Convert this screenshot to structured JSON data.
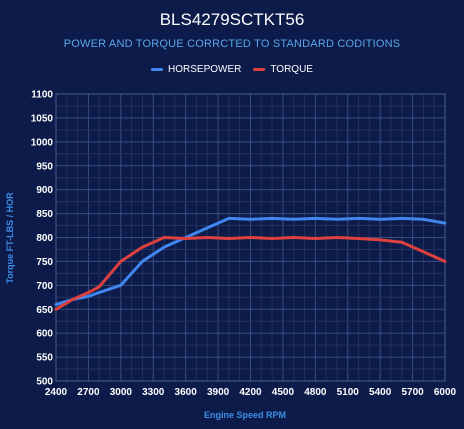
{
  "chart_data": {
    "type": "line",
    "title": "BLS4279SCTKT56",
    "subtitle": "POWER AND TORQUE CORRCTED TO STANDARD CODITIONS",
    "xlabel": "Engine Speed RPM",
    "ylabel": "Torque FT-LBS / HOR",
    "x": [
      2400,
      2550,
      2700,
      2800,
      3000,
      3200,
      3400,
      3600,
      3800,
      4000,
      4200,
      4400,
      4600,
      4800,
      5000,
      5200,
      5400,
      5600,
      5800,
      6000
    ],
    "x_ticks": [
      2400,
      2700,
      3000,
      3300,
      3600,
      3900,
      4200,
      4500,
      4800,
      5100,
      5400,
      5700,
      6000
    ],
    "y_ticks": [
      500,
      550,
      600,
      650,
      700,
      750,
      800,
      850,
      900,
      950,
      1000,
      1050,
      1100
    ],
    "xlim": [
      2400,
      6000
    ],
    "ylim": [
      500,
      1100
    ],
    "grid": true,
    "legend_position": "top",
    "series": [
      {
        "name": "HORSEPOWER",
        "color": "#3f86ef",
        "values": [
          660,
          670,
          677,
          685,
          700,
          750,
          780,
          800,
          820,
          840,
          838,
          840,
          838,
          840,
          838,
          840,
          838,
          840,
          838,
          830
        ]
      },
      {
        "name": "TORQUE",
        "color": "#de4040",
        "values": [
          650,
          670,
          685,
          697,
          750,
          780,
          800,
          798,
          800,
          798,
          800,
          798,
          800,
          798,
          800,
          798,
          795,
          790,
          770,
          750
        ]
      }
    ]
  }
}
